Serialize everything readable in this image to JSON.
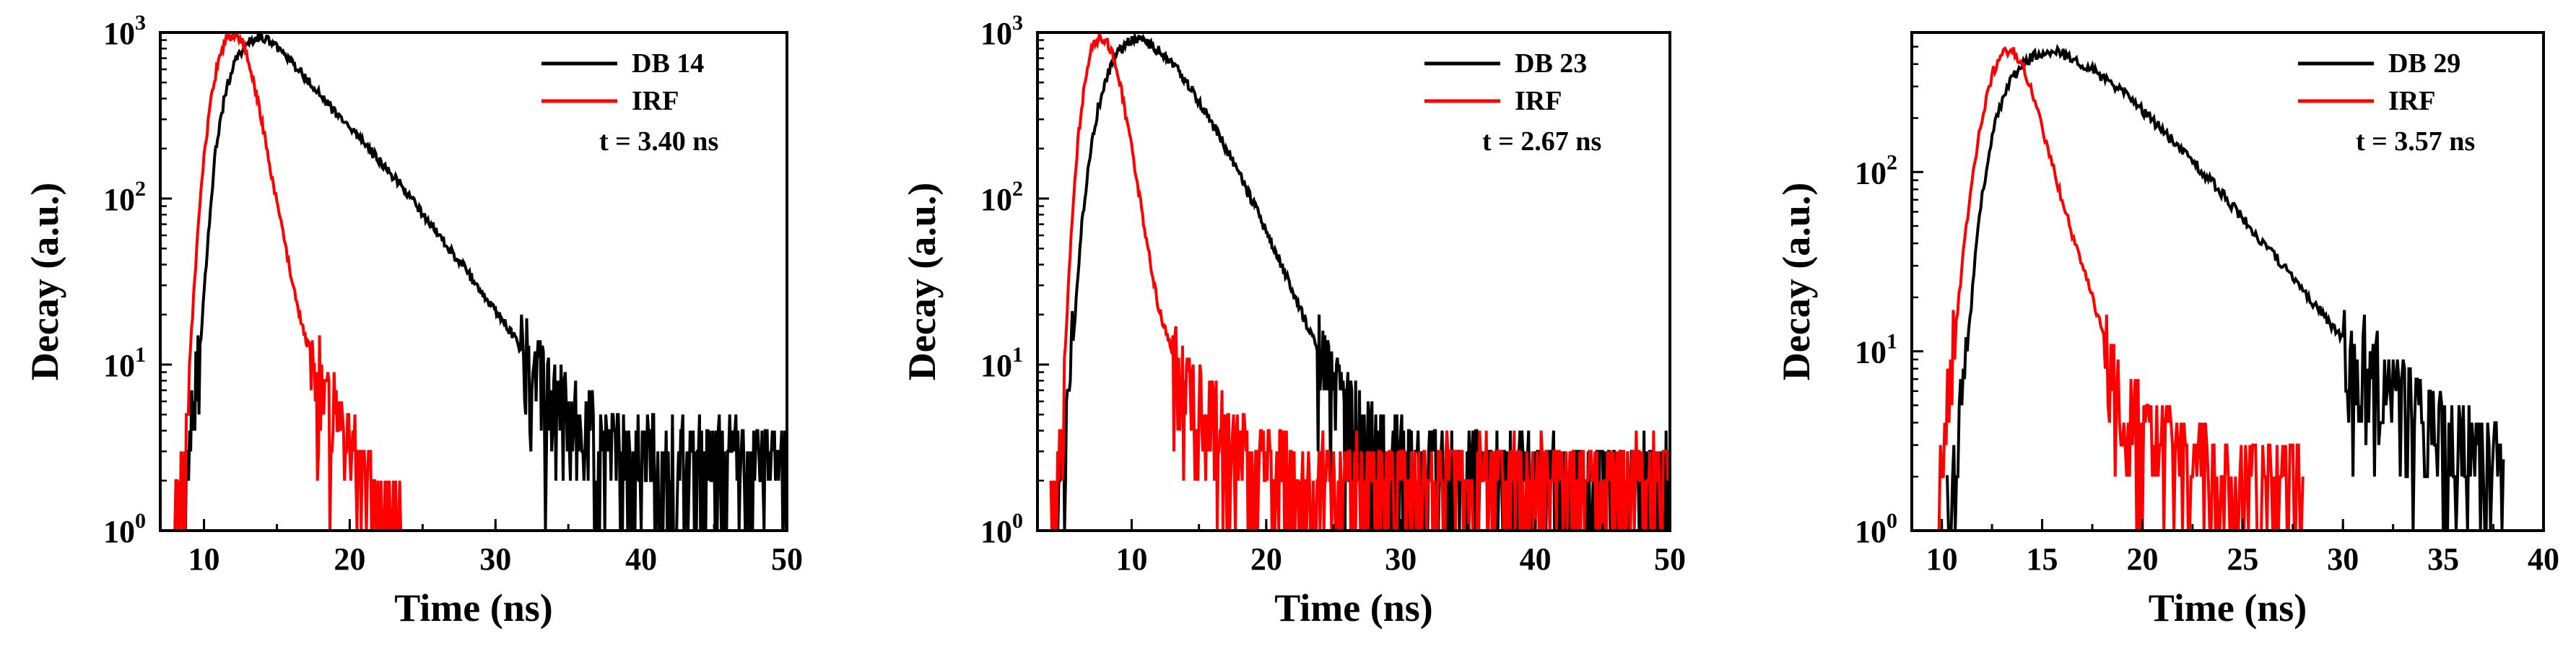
{
  "chart_data": [
    {
      "type": "line",
      "xlabel": "Time (ns)",
      "ylabel": "Decay (a.u.)",
      "yscale": "log",
      "xlim": [
        7,
        50
      ],
      "ylim": [
        1,
        1000
      ],
      "xticks": [
        10,
        20,
        30,
        40,
        50
      ],
      "yticks": [
        {
          "base": "10",
          "exp": "0"
        },
        {
          "base": "10",
          "exp": "1"
        },
        {
          "base": "10",
          "exp": "2"
        },
        {
          "base": "10",
          "exp": "3"
        }
      ],
      "legend_position": "top-right",
      "annotation": "t = 3.40 ns",
      "series": [
        {
          "name": "DB 14",
          "color": "#000000",
          "x": [
            8.3,
            8.8,
            9.3,
            9.8,
            10.3,
            10.8,
            11.5,
            12.2,
            13.0,
            13.8,
            14.5,
            15.5,
            16.5,
            17.5,
            19,
            20.5,
            22,
            23.5,
            25,
            26.5,
            28,
            29.5,
            31,
            32,
            33,
            34.5,
            36,
            38,
            40,
            42,
            44,
            46,
            48,
            50
          ],
          "y": [
            1,
            2,
            5,
            15,
            60,
            200,
            450,
            700,
            870,
            940,
            900,
            760,
            600,
            470,
            330,
            240,
            170,
            120,
            82,
            55,
            37,
            24,
            16,
            11,
            8,
            6,
            4.5,
            3.5,
            2.8,
            2.8,
            2.6,
            2.6,
            2.5,
            2.5
          ]
        },
        {
          "name": "IRF",
          "color": "#ff0000",
          "x": [
            8.0,
            8.5,
            9.0,
            9.5,
            10.0,
            10.5,
            11.0,
            11.6,
            12.1,
            12.7,
            13.3,
            14.0,
            14.7,
            15.5,
            16.3,
            17.0,
            18.0,
            19.0,
            20.0,
            21.0,
            22.0,
            23.0,
            24.0
          ],
          "y": [
            1,
            2,
            10,
            50,
            180,
            400,
            700,
            920,
            960,
            850,
            560,
            280,
            130,
            55,
            25,
            14,
            9,
            5,
            3,
            2,
            1.5,
            1.2,
            1
          ]
        }
      ]
    },
    {
      "type": "line",
      "xlabel": "Time (ns)",
      "ylabel": "Decay (a.u.)",
      "yscale": "log",
      "xlim": [
        3,
        50
      ],
      "ylim": [
        1,
        1000
      ],
      "xticks": [
        10,
        20,
        30,
        40,
        50
      ],
      "yticks": [
        {
          "base": "10",
          "exp": "0"
        },
        {
          "base": "10",
          "exp": "1"
        },
        {
          "base": "10",
          "exp": "2"
        },
        {
          "base": "10",
          "exp": "3"
        }
      ],
      "legend_position": "top-right",
      "annotation": "t = 2.67 ns",
      "series": [
        {
          "name": "DB 23",
          "color": "#000000",
          "x": [
            4.3,
            4.8,
            5.3,
            5.8,
            6.3,
            6.9,
            7.5,
            8.2,
            9.0,
            9.8,
            10.6,
            11.5,
            12.5,
            13.5,
            14.5,
            15.5,
            16.5,
            17.5,
            18.5,
            19.5,
            20.5,
            21.5,
            22.5,
            23.5,
            24.5,
            25.5,
            26.5,
            27.5,
            29,
            31,
            34,
            37,
            40,
            44,
            47,
            50
          ],
          "y": [
            1,
            2,
            6,
            20,
            70,
            180,
            350,
            550,
            760,
            880,
            900,
            840,
            720,
            590,
            450,
            330,
            240,
            170,
            115,
            78,
            52,
            34,
            22,
            14,
            9,
            6,
            4.5,
            3.5,
            2.8,
            2.5,
            2.2,
            2.2,
            2.0,
            2.0,
            2.0,
            2.0
          ]
        },
        {
          "name": "IRF",
          "color": "#ff0000",
          "x": [
            4.0,
            4.5,
            5.0,
            5.5,
            6.0,
            6.5,
            7.0,
            7.6,
            8.2,
            8.8,
            9.4,
            10.0,
            10.6,
            11.3,
            12.0,
            13.0,
            14.0,
            15.0,
            16.0,
            17.0,
            18.0,
            20.0,
            22.0,
            25.0,
            30.0,
            35.0,
            40.0,
            45.0,
            50.0
          ],
          "y": [
            1,
            2,
            10,
            60,
            220,
            500,
            800,
            930,
            880,
            650,
            380,
            200,
            100,
            45,
            22,
            12,
            8,
            6,
            4.5,
            3.5,
            3,
            2.5,
            2.2,
            2,
            2,
            2,
            2,
            2,
            2
          ]
        }
      ]
    },
    {
      "type": "line",
      "xlabel": "Time (ns)",
      "ylabel": "Decay (a.u.)",
      "yscale": "log",
      "xlim": [
        8.5,
        40
      ],
      "ylim": [
        1,
        600
      ],
      "xticks": [
        10,
        15,
        20,
        25,
        30,
        35,
        40
      ],
      "yticks": [
        {
          "base": "10",
          "exp": "0"
        },
        {
          "base": "10",
          "exp": "1"
        },
        {
          "base": "10",
          "exp": "2"
        }
      ],
      "legend_position": "top-right",
      "annotation": "t = 3.57 ns",
      "series": [
        {
          "name": "DB 29",
          "color": "#000000",
          "x": [
            10.2,
            10.6,
            11.0,
            11.4,
            11.8,
            12.3,
            12.8,
            13.4,
            14.0,
            14.7,
            15.4,
            16.2,
            17.0,
            18.0,
            19.0,
            20.0,
            21.0,
            22.0,
            23.0,
            24.0,
            25.0,
            26.0,
            27.0,
            28.0,
            29.0,
            30.0,
            31.0,
            32.0,
            33.0,
            34.0,
            35.0,
            36.0,
            37.0,
            38.0
          ],
          "y": [
            1,
            2,
            5,
            15,
            50,
            120,
            220,
            320,
            400,
            450,
            470,
            450,
            400,
            340,
            280,
            220,
            170,
            130,
            100,
            75,
            55,
            40,
            30,
            22,
            16,
            12,
            9,
            7,
            5,
            4,
            3.5,
            3,
            2.7,
            2.5
          ]
        },
        {
          "name": "IRF",
          "color": "#ff0000",
          "x": [
            9.5,
            10.0,
            10.5,
            11.0,
            11.5,
            12.0,
            12.5,
            13.0,
            13.5,
            14.0,
            14.5,
            15.0,
            15.5,
            16.0,
            16.5,
            17.0,
            17.5,
            18.0,
            18.5,
            19.0,
            19.5,
            20.0,
            21.0,
            22.0,
            23.0,
            24.0,
            25.0,
            26.0,
            27.0,
            28.0
          ],
          "y": [
            1,
            2,
            8,
            30,
            90,
            200,
            350,
            470,
            480,
            400,
            280,
            180,
            110,
            70,
            45,
            30,
            20,
            13,
            9,
            6,
            4.5,
            3.5,
            2.8,
            2.4,
            2.2,
            2.0,
            2.0,
            2.0,
            2.0,
            2.0
          ]
        }
      ]
    }
  ]
}
